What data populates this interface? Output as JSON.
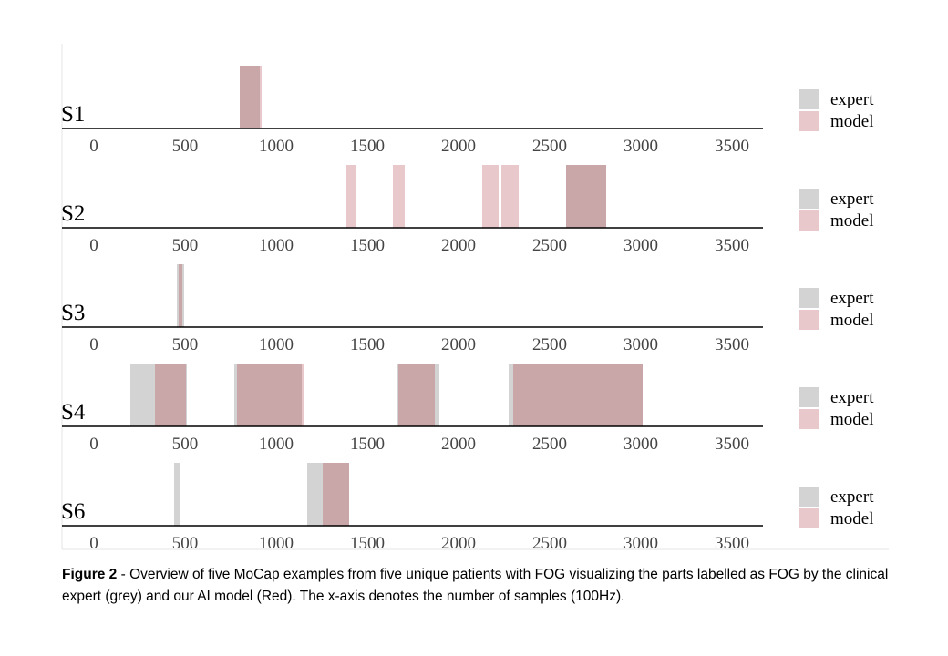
{
  "colors": {
    "expert": "#d3d3d3",
    "model": "#e8c8ca",
    "overlap": "#c9a7a8",
    "axis": "#000000",
    "frame": "#e4e4e4"
  },
  "caption": {
    "label": "Figure 2",
    "text": " - Overview of five MoCap examples from five unique patients with FOG visualizing the parts labelled as FOG by the clinical expert (grey) and our AI model (Red). The x-axis denotes the number of samples (100Hz)."
  },
  "chart_data": [
    {
      "type": "bar",
      "name": "S1",
      "title": "S1",
      "xlim": [
        0,
        3500
      ],
      "ticks": [
        0,
        500,
        1000,
        1500,
        2000,
        2500,
        3000,
        3500
      ],
      "legend": [
        "expert",
        "model"
      ],
      "legend_position": "right",
      "series": [
        {
          "name": "expert",
          "intervals": [
            [
              800,
              910
            ]
          ]
        },
        {
          "name": "model",
          "intervals": [
            [
              800,
              920
            ]
          ]
        }
      ]
    },
    {
      "type": "bar",
      "name": "S2",
      "title": "S2",
      "xlim": [
        0,
        3500
      ],
      "ticks": [
        0,
        500,
        1000,
        1500,
        2000,
        2500,
        3000,
        3500
      ],
      "legend": [
        "expert",
        "model"
      ],
      "legend_position": "right",
      "series": [
        {
          "name": "expert",
          "intervals": [
            [
              2590,
              2810
            ]
          ]
        },
        {
          "name": "model",
          "intervals": [
            [
              1385,
              1440
            ],
            [
              1640,
              1705
            ],
            [
              2130,
              2220
            ],
            [
              2235,
              2330
            ],
            [
              2590,
              2810
            ]
          ]
        }
      ]
    },
    {
      "type": "bar",
      "name": "S3",
      "title": "S3",
      "xlim": [
        0,
        3500
      ],
      "ticks": [
        0,
        500,
        1000,
        1500,
        2000,
        2500,
        3000,
        3500
      ],
      "legend": [
        "expert",
        "model"
      ],
      "legend_position": "right",
      "series": [
        {
          "name": "expert",
          "intervals": [
            [
              455,
              495
            ]
          ]
        },
        {
          "name": "model",
          "intervals": [
            [
              465,
              485
            ]
          ]
        }
      ]
    },
    {
      "type": "bar",
      "name": "S4",
      "title": "S4",
      "xlim": [
        0,
        3500
      ],
      "ticks": [
        0,
        500,
        1000,
        1500,
        2000,
        2500,
        3000,
        3500
      ],
      "legend": [
        "expert",
        "model"
      ],
      "legend_position": "right",
      "series": [
        {
          "name": "expert",
          "intervals": [
            [
              200,
              510
            ],
            [
              770,
              1140
            ],
            [
              1660,
              1895
            ],
            [
              2275,
              3010
            ]
          ]
        },
        {
          "name": "model",
          "intervals": [
            [
              335,
              505
            ],
            [
              785,
              1150
            ],
            [
              1670,
              1870
            ],
            [
              2300,
              3010
            ]
          ]
        }
      ]
    },
    {
      "type": "bar",
      "name": "S6",
      "title": "S6",
      "xlim": [
        0,
        3500
      ],
      "ticks": [
        0,
        500,
        1000,
        1500,
        2000,
        2500,
        3000,
        3500
      ],
      "legend": [
        "expert",
        "model"
      ],
      "legend_position": "right",
      "series": [
        {
          "name": "expert",
          "intervals": [
            [
              440,
              475
            ],
            [
              1170,
              1400
            ]
          ]
        },
        {
          "name": "model",
          "intervals": [
            [
              1255,
              1400
            ]
          ]
        }
      ]
    }
  ]
}
